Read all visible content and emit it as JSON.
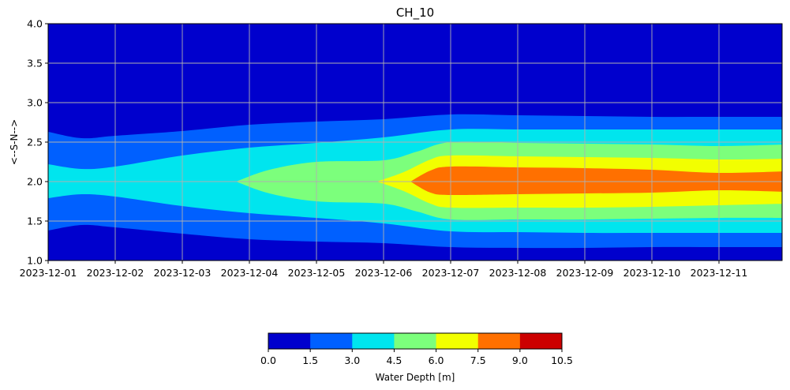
{
  "chart_data": {
    "type": "heatmap",
    "subtype": "filled-contour",
    "title": "CH_10",
    "xlabel": "",
    "ylabel": "<--S-N-->",
    "x_ticks": [
      "2023-12-01",
      "2023-12-02",
      "2023-12-03",
      "2023-12-04",
      "2023-12-05",
      "2023-12-06",
      "2023-12-07",
      "2023-12-08",
      "2023-12-09",
      "2023-12-10",
      "2023-12-11"
    ],
    "xlim": [
      "2023-12-01 00:00",
      "2023-12-11 23:00"
    ],
    "y_ticks": [
      "1.0",
      "1.5",
      "2.0",
      "2.5",
      "3.0",
      "3.5",
      "4.0"
    ],
    "ylim": [
      1.0,
      4.0
    ],
    "grid": true,
    "colorbar": {
      "label": "Water Depth [m]",
      "placement": "bottom",
      "levels": [
        0.0,
        1.5,
        3.0,
        4.5,
        6.0,
        7.5,
        9.0,
        10.5
      ],
      "tick_labels": [
        "0.0",
        "1.5",
        "3.0",
        "4.5",
        "6.0",
        "7.5",
        "9.0",
        "10.5"
      ],
      "colors": [
        "#0000cd",
        "#0060ff",
        "#00e5ee",
        "#7cff7c",
        "#f2ff00",
        "#ff7000",
        "#cc0000"
      ]
    },
    "bands": [
      {
        "level": "1.5-3.0",
        "edge_keys": [
          0.0,
          0.5,
          1.0,
          2.0,
          3.0,
          4.0,
          5.0,
          6.0,
          7.0,
          8.0,
          9.0,
          10.0,
          11.0
        ],
        "upper": [
          2.63,
          2.55,
          2.58,
          2.64,
          2.72,
          2.76,
          2.79,
          2.85,
          2.84,
          2.83,
          2.82,
          2.82,
          2.82
        ],
        "lower": [
          1.38,
          1.45,
          1.42,
          1.34,
          1.27,
          1.24,
          1.22,
          1.17,
          1.16,
          1.16,
          1.17,
          1.17,
          1.17
        ]
      },
      {
        "level": "3.0-4.5",
        "edge_keys": [
          0.0,
          0.5,
          1.0,
          2.0,
          3.0,
          4.0,
          5.0,
          6.0,
          7.0,
          8.0,
          9.0,
          10.0,
          11.0
        ],
        "upper": [
          2.22,
          2.16,
          2.19,
          2.33,
          2.43,
          2.49,
          2.56,
          2.66,
          2.66,
          2.66,
          2.66,
          2.66,
          2.66
        ],
        "lower": [
          1.79,
          1.84,
          1.81,
          1.69,
          1.6,
          1.54,
          1.47,
          1.37,
          1.36,
          1.35,
          1.35,
          1.35,
          1.35
        ]
      },
      {
        "level": "4.5-6.0",
        "edge_keys": [
          2.8,
          3.3,
          4.0,
          5.0,
          5.5,
          6.0,
          7.0,
          8.0,
          9.0,
          10.0,
          11.0
        ],
        "upper": [
          2.0,
          2.15,
          2.25,
          2.27,
          2.38,
          2.5,
          2.49,
          2.48,
          2.47,
          2.45,
          2.47
        ],
        "lower": [
          2.0,
          1.85,
          1.75,
          1.72,
          1.62,
          1.52,
          1.52,
          1.52,
          1.53,
          1.54,
          1.54
        ]
      },
      {
        "level": "6.0-7.5",
        "edge_keys": [
          4.9,
          5.3,
          5.7,
          6.0,
          7.0,
          8.0,
          9.0,
          10.0,
          11.0
        ],
        "upper": [
          2.0,
          2.12,
          2.28,
          2.33,
          2.32,
          2.31,
          2.3,
          2.28,
          2.29
        ],
        "lower": [
          2.0,
          1.88,
          1.72,
          1.67,
          1.67,
          1.67,
          1.68,
          1.7,
          1.72
        ]
      },
      {
        "level": "7.5-9.0",
        "edge_keys": [
          5.4,
          5.7,
          6.0,
          7.0,
          8.0,
          9.0,
          10.0,
          11.0
        ],
        "upper": [
          2.0,
          2.14,
          2.19,
          2.18,
          2.17,
          2.15,
          2.11,
          2.13
        ],
        "lower": [
          2.0,
          1.86,
          1.83,
          1.84,
          1.85,
          1.86,
          1.89,
          1.87
        ]
      }
    ]
  }
}
